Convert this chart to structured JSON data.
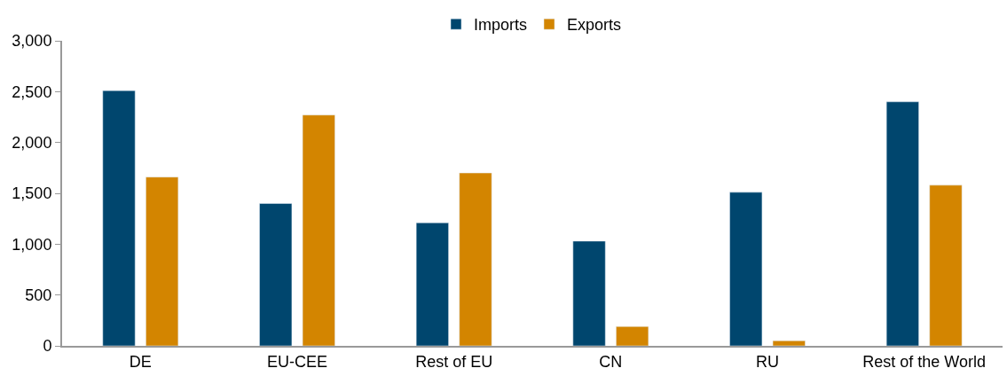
{
  "chart_data": {
    "type": "bar",
    "categories": [
      "DE",
      "EU-CEE",
      "Rest of EU",
      "CN",
      "RU",
      "Rest of the World"
    ],
    "series": [
      {
        "name": "Imports",
        "color": "#00466e",
        "values": [
          2510,
          1400,
          1210,
          1030,
          1510,
          2400
        ]
      },
      {
        "name": "Exports",
        "color": "#d38500",
        "values": [
          1660,
          2270,
          1700,
          190,
          50,
          1580
        ]
      }
    ],
    "ylim": [
      0,
      3000
    ],
    "yticks": [
      {
        "value": 0,
        "label": "0"
      },
      {
        "value": 500,
        "label": "500"
      },
      {
        "value": 1000,
        "label": "1,000"
      },
      {
        "value": 1500,
        "label": "1,500"
      },
      {
        "value": 2000,
        "label": "2,000"
      },
      {
        "value": 2500,
        "label": "2,500"
      },
      {
        "value": 3000,
        "label": "3,000"
      }
    ],
    "legend": "top"
  }
}
